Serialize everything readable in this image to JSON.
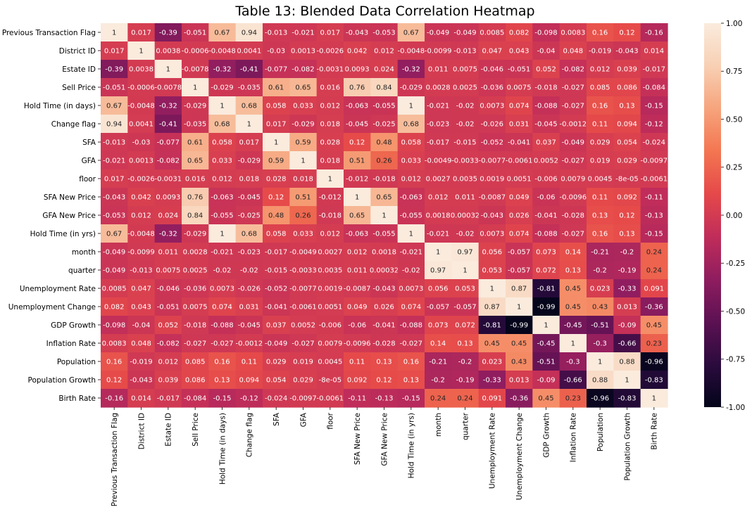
{
  "chart_data": {
    "type": "heatmap",
    "title": "Table 13: Blended Data Correlation Heatmap",
    "row_labels": [
      "Previous Transaction Flag",
      "District ID",
      "Estate ID",
      "Sell Price",
      "Hold Time (in days)",
      "Change flag",
      "SFA",
      "GFA",
      "floor",
      "SFA New Price",
      "GFA New Price",
      "Hold Time (in yrs)",
      "month",
      "quarter",
      "Unemployment Rate",
      "Unemployment Change",
      "GDP Growth",
      "Inflation Rate",
      "Population",
      "Population Growth",
      "Birth Rate"
    ],
    "col_labels": [
      "Previous Transaction Flag",
      "District ID",
      "Estate ID",
      "Sell Price",
      "Hold Time (in days)",
      "Change flag",
      "SFA",
      "GFA",
      "floor",
      "SFA New Price",
      "GFA New Price",
      "Hold Time (in yrs)",
      "month",
      "quarter",
      "Unemployment Rate",
      "Unemployment Change",
      "GDP Growth",
      "Inflation Rate",
      "Population",
      "Population Growth",
      "Birth Rate"
    ],
    "cells": [
      [
        "1",
        "0.017",
        "-0.39",
        "-0.051",
        "0.67",
        "0.94",
        "-0.013",
        "-0.021",
        "0.017",
        "-0.043",
        "-0.053",
        "0.67",
        "-0.049",
        "-0.049",
        "0.0085",
        "0.082",
        "-0.098",
        "0.0083",
        "0.16",
        "0.12",
        "-0.16"
      ],
      [
        "0.017",
        "1",
        "0.0038",
        "-0.0006",
        "-0.0048",
        "0.0041",
        "-0.03",
        "0.0013",
        "-0.0026",
        "0.042",
        "0.012",
        "-0.0048",
        "-0.0099",
        "-0.013",
        "0.047",
        "0.043",
        "-0.04",
        "0.048",
        "-0.019",
        "-0.043",
        "0.014"
      ],
      [
        "-0.39",
        "0.0038",
        "1",
        "-0.0078",
        "-0.32",
        "-0.41",
        "-0.077",
        "-0.082",
        "-0.0031",
        "0.0093",
        "0.024",
        "-0.32",
        "0.011",
        "0.0075",
        "-0.046",
        "-0.051",
        "0.052",
        "-0.082",
        "0.012",
        "0.039",
        "-0.017"
      ],
      [
        "-0.051",
        "-0.0006",
        "-0.0078",
        "1",
        "-0.029",
        "-0.035",
        "0.61",
        "0.65",
        "0.016",
        "0.76",
        "0.84",
        "-0.029",
        "0.0028",
        "0.0025",
        "-0.036",
        "0.0075",
        "-0.018",
        "-0.027",
        "0.085",
        "0.086",
        "-0.084"
      ],
      [
        "0.67",
        "-0.0048",
        "-0.32",
        "-0.029",
        "1",
        "0.68",
        "0.058",
        "0.033",
        "0.012",
        "-0.063",
        "-0.055",
        "1",
        "-0.021",
        "-0.02",
        "0.0073",
        "0.074",
        "-0.088",
        "-0.027",
        "0.16",
        "0.13",
        "-0.15"
      ],
      [
        "0.94",
        "0.0041",
        "-0.41",
        "-0.035",
        "0.68",
        "1",
        "0.017",
        "-0.029",
        "0.018",
        "-0.045",
        "-0.025",
        "0.68",
        "-0.023",
        "-0.02",
        "-0.026",
        "0.031",
        "-0.045",
        "-0.0012",
        "0.11",
        "0.094",
        "-0.12"
      ],
      [
        "-0.013",
        "-0.03",
        "-0.077",
        "0.61",
        "0.058",
        "0.017",
        "1",
        "0.59",
        "0.028",
        "0.12",
        "0.48",
        "0.058",
        "-0.017",
        "-0.015",
        "-0.052",
        "-0.041",
        "0.037",
        "-0.049",
        "0.029",
        "0.054",
        "-0.024"
      ],
      [
        "-0.021",
        "0.0013",
        "-0.082",
        "0.65",
        "0.033",
        "-0.029",
        "0.59",
        "1",
        "0.018",
        "0.51",
        "0.26",
        "0.033",
        "-0.0049",
        "-0.0033",
        "-0.0077",
        "-0.0061",
        "0.0052",
        "-0.027",
        "0.019",
        "0.029",
        "-0.0097"
      ],
      [
        "0.017",
        "-0.0026",
        "-0.0031",
        "0.016",
        "0.012",
        "0.018",
        "0.028",
        "0.018",
        "1",
        "-0.012",
        "-0.018",
        "0.012",
        "0.0027",
        "0.0035",
        "0.0019",
        "0.0051",
        "-0.006",
        "0.0079",
        "0.0045",
        "-8e-05",
        "-0.0061"
      ],
      [
        "-0.043",
        "0.042",
        "0.0093",
        "0.76",
        "-0.063",
        "-0.045",
        "0.12",
        "0.51",
        "-0.012",
        "1",
        "0.65",
        "-0.063",
        "0.012",
        "0.011",
        "-0.0087",
        "0.049",
        "-0.06",
        "-0.0096",
        "0.11",
        "0.092",
        "-0.11"
      ],
      [
        "-0.053",
        "0.012",
        "0.024",
        "0.84",
        "-0.055",
        "-0.025",
        "0.48",
        "0.26",
        "-0.018",
        "0.65",
        "1",
        "-0.055",
        "0.0018",
        "0.00032",
        "-0.043",
        "0.026",
        "-0.041",
        "-0.028",
        "0.13",
        "0.12",
        "-0.13"
      ],
      [
        "0.67",
        "-0.0048",
        "-0.32",
        "-0.029",
        "1",
        "0.68",
        "0.058",
        "0.033",
        "0.012",
        "-0.063",
        "-0.055",
        "1",
        "-0.021",
        "-0.02",
        "0.0073",
        "0.074",
        "-0.088",
        "-0.027",
        "0.16",
        "0.13",
        "-0.15"
      ],
      [
        "-0.049",
        "-0.0099",
        "0.011",
        "0.0028",
        "-0.021",
        "-0.023",
        "-0.017",
        "-0.0049",
        "0.0027",
        "0.012",
        "0.0018",
        "-0.021",
        "1",
        "0.97",
        "0.056",
        "-0.057",
        "0.073",
        "0.14",
        "-0.21",
        "-0.2",
        "0.24"
      ],
      [
        "-0.049",
        "-0.013",
        "0.0075",
        "0.0025",
        "-0.02",
        "-0.02",
        "-0.015",
        "-0.0033",
        "0.0035",
        "0.011",
        "0.00032",
        "-0.02",
        "0.97",
        "1",
        "0.053",
        "-0.057",
        "0.072",
        "0.13",
        "-0.2",
        "-0.19",
        "0.24"
      ],
      [
        "0.0085",
        "0.047",
        "-0.046",
        "-0.036",
        "0.0073",
        "-0.026",
        "-0.052",
        "-0.0077",
        "0.0019",
        "-0.0087",
        "-0.043",
        "0.0073",
        "0.056",
        "0.053",
        "1",
        "0.87",
        "-0.81",
        "0.45",
        "0.023",
        "-0.33",
        "0.091"
      ],
      [
        "0.082",
        "0.043",
        "-0.051",
        "0.0075",
        "0.074",
        "0.031",
        "-0.041",
        "-0.0061",
        "0.0051",
        "0.049",
        "0.026",
        "0.074",
        "-0.057",
        "-0.057",
        "0.87",
        "1",
        "-0.99",
        "0.45",
        "0.43",
        "0.013",
        "-0.36"
      ],
      [
        "-0.098",
        "-0.04",
        "0.052",
        "-0.018",
        "-0.088",
        "-0.045",
        "0.037",
        "0.0052",
        "-0.006",
        "-0.06",
        "-0.041",
        "-0.088",
        "0.073",
        "0.072",
        "-0.81",
        "-0.99",
        "1",
        "-0.45",
        "-0.51",
        "-0.09",
        "0.45"
      ],
      [
        "0.0083",
        "0.048",
        "-0.082",
        "-0.027",
        "-0.027",
        "-0.0012",
        "-0.049",
        "-0.027",
        "0.0079",
        "-0.0096",
        "-0.028",
        "-0.027",
        "0.14",
        "0.13",
        "0.45",
        "0.45",
        "-0.45",
        "1",
        "-0.3",
        "-0.66",
        "0.23"
      ],
      [
        "0.16",
        "-0.019",
        "0.012",
        "0.085",
        "0.16",
        "0.11",
        "0.029",
        "0.019",
        "0.0045",
        "0.11",
        "0.13",
        "0.16",
        "-0.21",
        "-0.2",
        "0.023",
        "0.43",
        "-0.51",
        "-0.3",
        "1",
        "0.88",
        "-0.96"
      ],
      [
        "0.12",
        "-0.043",
        "0.039",
        "0.086",
        "0.13",
        "0.094",
        "0.054",
        "0.029",
        "-8e-05",
        "0.092",
        "0.12",
        "0.13",
        "-0.2",
        "-0.19",
        "-0.33",
        "0.013",
        "-0.09",
        "-0.66",
        "0.88",
        "1",
        "-0.83"
      ],
      [
        "-0.16",
        "0.014",
        "-0.017",
        "-0.084",
        "-0.15",
        "-0.12",
        "-0.024",
        "-0.0097",
        "-0.0061",
        "-0.11",
        "-0.13",
        "-0.15",
        "0.24",
        "0.24",
        "0.091",
        "-0.36",
        "0.45",
        "0.23",
        "-0.96",
        "-0.83",
        "1"
      ]
    ],
    "colorbar": {
      "range": [
        -1.0,
        1.0
      ],
      "ticks": [
        "1.00",
        "0.75",
        "0.50",
        "0.25",
        "0.00",
        "-0.25",
        "-0.50",
        "-0.75",
        "-1.00"
      ],
      "tick_values": [
        1.0,
        0.75,
        0.5,
        0.25,
        0.0,
        -0.25,
        -0.5,
        -0.75,
        -1.0
      ],
      "colormap_stops": [
        "#03051a",
        "#2b0b3e",
        "#5c1153",
        "#8f1d5f",
        "#c02d5a",
        "#e5494a",
        "#f37651",
        "#f6a47c",
        "#f8d0b4",
        "#faebdd"
      ]
    }
  }
}
